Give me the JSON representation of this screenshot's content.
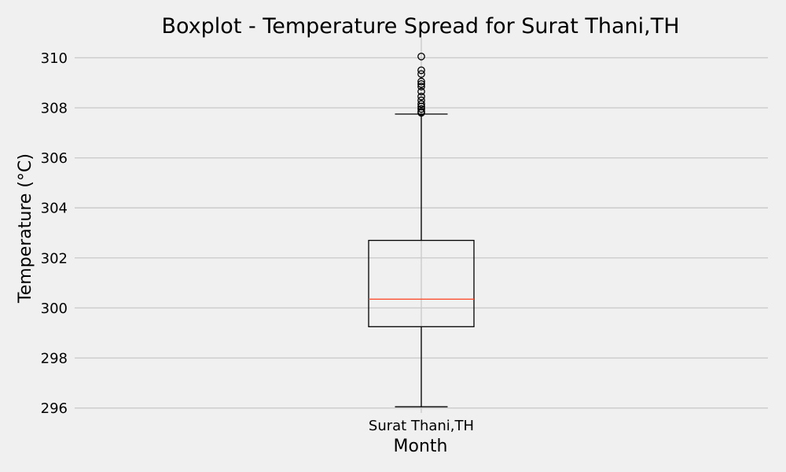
{
  "chart_data": {
    "type": "boxplot",
    "title": "Boxplot - Temperature Spread for Surat Thani,TH",
    "xlabel": "Month",
    "ylabel": "Temperature (°C)",
    "ylim": [
      295.8,
      310.8
    ],
    "yticks": [
      296,
      298,
      300,
      302,
      304,
      306,
      308,
      310
    ],
    "grid": true,
    "categories": [
      "Surat Thani,TH"
    ],
    "boxes": [
      {
        "category": "Surat Thani,TH",
        "whisker_low": 296.05,
        "q1": 299.25,
        "median": 300.35,
        "q3": 302.7,
        "whisker_high": 307.75,
        "outliers": [
          307.8,
          307.85,
          307.95,
          308.05,
          308.15,
          308.3,
          308.45,
          308.65,
          308.85,
          308.95,
          309.05,
          309.35,
          309.5,
          310.05
        ]
      }
    ],
    "colors": {
      "background": "#f0f0f0",
      "grid": "#cbcbcb",
      "box": "#000000",
      "median": "#fc4f30"
    }
  }
}
